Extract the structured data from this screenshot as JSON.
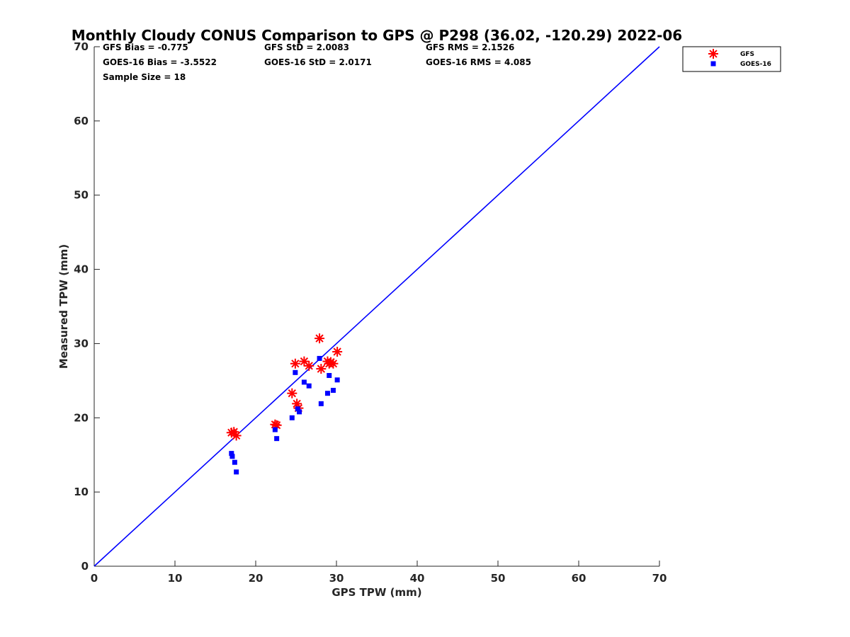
{
  "chart_data": {
    "type": "scatter",
    "title": "Monthly Cloudy CONUS Comparison to GPS @ P298 (36.02, -120.29) 2022-06",
    "xlabel": "GPS TPW (mm)",
    "ylabel": "Measured TPW (mm)",
    "xlim": [
      0,
      70
    ],
    "ylim": [
      0,
      70
    ],
    "xticks": [
      "0",
      "10",
      "20",
      "30",
      "40",
      "50",
      "60",
      "70"
    ],
    "yticks": [
      "0",
      "10",
      "20",
      "30",
      "40",
      "50",
      "60",
      "70"
    ],
    "grid": false,
    "legend_position": "outside-top-right",
    "stats": [
      [
        "GFS Bias = -0.775",
        "GFS StD = 2.0083",
        "GFS RMS = 2.1526"
      ],
      [
        "GOES-16 Bias = -3.5522",
        "GOES-16 StD = 2.0171",
        "GOES-16 RMS = 4.085"
      ],
      [
        "Sample Size = 18"
      ]
    ],
    "reference_line": {
      "x": [
        0,
        70
      ],
      "y": [
        0,
        70
      ],
      "color": "#0000ff"
    },
    "series": [
      {
        "name": "GFS",
        "marker": "asterisk",
        "color": "#ff0000",
        "points": [
          [
            17.0,
            18.0
          ],
          [
            17.3,
            18.1
          ],
          [
            17.6,
            17.6
          ],
          [
            22.4,
            19.1
          ],
          [
            22.6,
            19.0
          ],
          [
            24.5,
            23.3
          ],
          [
            24.9,
            27.3
          ],
          [
            25.1,
            21.9
          ],
          [
            25.3,
            21.3
          ],
          [
            26.0,
            27.6
          ],
          [
            26.6,
            27.0
          ],
          [
            27.9,
            30.7
          ],
          [
            28.1,
            26.6
          ],
          [
            28.9,
            27.6
          ],
          [
            29.1,
            27.3
          ],
          [
            29.3,
            27.5
          ],
          [
            29.6,
            27.3
          ],
          [
            30.1,
            28.9
          ]
        ]
      },
      {
        "name": "GOES-16",
        "marker": "square",
        "color": "#0000ff",
        "points": [
          [
            17.0,
            15.2
          ],
          [
            17.1,
            14.8
          ],
          [
            17.4,
            14.0
          ],
          [
            17.6,
            12.7
          ],
          [
            22.4,
            18.4
          ],
          [
            22.6,
            17.2
          ],
          [
            24.5,
            20.0
          ],
          [
            24.9,
            26.1
          ],
          [
            25.2,
            21.2
          ],
          [
            25.4,
            20.8
          ],
          [
            26.0,
            24.8
          ],
          [
            26.6,
            24.3
          ],
          [
            27.9,
            28.0
          ],
          [
            28.1,
            21.9
          ],
          [
            28.9,
            23.3
          ],
          [
            29.1,
            25.7
          ],
          [
            29.6,
            23.7
          ],
          [
            30.1,
            25.1
          ]
        ]
      }
    ]
  }
}
